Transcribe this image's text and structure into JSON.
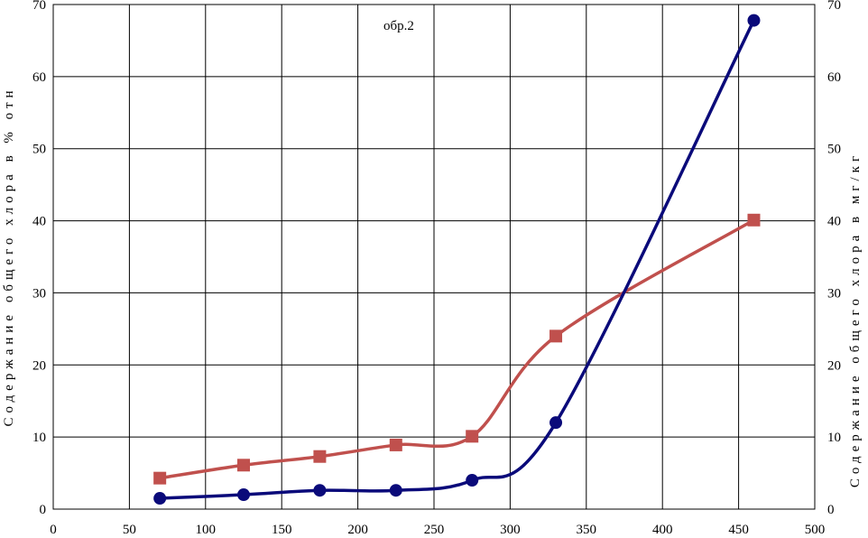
{
  "chart_data": {
    "type": "line",
    "annotation": "обр.2",
    "xlim": [
      0,
      500
    ],
    "x_ticks": [
      0,
      50,
      100,
      150,
      200,
      250,
      300,
      350,
      400,
      450,
      500
    ],
    "ylim": [
      0,
      70
    ],
    "y_ticks": [
      0,
      10,
      20,
      30,
      40,
      50,
      60,
      70
    ],
    "y2lim": [
      0,
      70
    ],
    "y2_ticks": [
      0,
      10,
      20,
      30,
      40,
      50,
      60,
      70
    ],
    "ylabel": "Содержание общего хлора в % отн",
    "y2label": "Содержание общего хлора в мг/кг",
    "grid": true,
    "series": [
      {
        "color": "#0a0a7a",
        "marker": "circle",
        "x": [
          70,
          125,
          175,
          225,
          275,
          330,
          460
        ],
        "y": [
          1.5,
          2.0,
          2.6,
          2.6,
          4.0,
          12.0,
          67.8
        ]
      },
      {
        "color": "#c0504d",
        "marker": "square",
        "x": [
          70,
          125,
          175,
          225,
          275,
          330,
          460
        ],
        "y": [
          4.3,
          6.1,
          7.3,
          8.9,
          10.1,
          24.0,
          40.1
        ]
      }
    ]
  }
}
